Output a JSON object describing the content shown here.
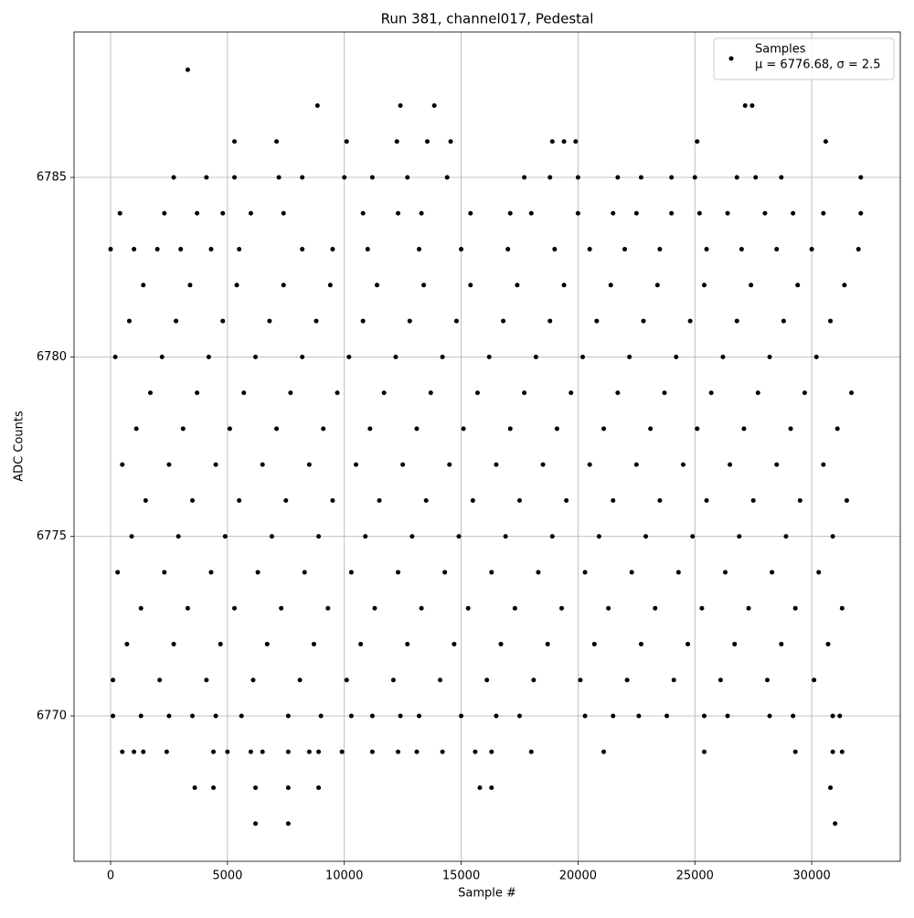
{
  "chart_data": {
    "type": "scatter",
    "title": "Run 381, channel017, Pedestal",
    "x_label": "Sample #",
    "y_label": "ADC Counts",
    "xlim": [
      -1565,
      33790
    ],
    "ylim": [
      6765.95,
      6789.05
    ],
    "xticks": [
      0,
      5000,
      10000,
      15000,
      20000,
      25000,
      30000
    ],
    "yticks": [
      6770,
      6775,
      6780,
      6785
    ],
    "grid": true,
    "legend_position": "upper right",
    "series": [
      {
        "name": "Samples",
        "label": "μ = 6776.68, σ = 2.5",
        "color": "#000000",
        "x": [
          3300,
          8850,
          12400,
          13850,
          27150,
          27450,
          5300,
          7100,
          10100,
          12250,
          13550,
          14550,
          18900,
          19400,
          19900,
          25100,
          30600,
          2700,
          4100,
          5300,
          7200,
          8200,
          10000,
          11200,
          12700,
          14400,
          17700,
          18800,
          20000,
          21700,
          22700,
          24000,
          25000,
          26800,
          27600,
          28700,
          32100,
          400,
          2300,
          3700,
          4800,
          6000,
          7400,
          10800,
          12300,
          13300,
          15400,
          17100,
          18000,
          20000,
          21500,
          22500,
          24000,
          25200,
          26400,
          28000,
          29200,
          30500,
          32100,
          0,
          1000,
          2000,
          3000,
          4300,
          5500,
          8200,
          9500,
          11000,
          13200,
          15000,
          17000,
          19000,
          20500,
          22000,
          23500,
          25500,
          27000,
          28500,
          30000,
          32000,
          1400,
          3400,
          5400,
          7400,
          9400,
          11400,
          13400,
          15400,
          17400,
          19400,
          21400,
          23400,
          25400,
          27400,
          29400,
          31400,
          800,
          2800,
          4800,
          6800,
          8800,
          10800,
          12800,
          14800,
          16800,
          18800,
          20800,
          22800,
          24800,
          26800,
          28800,
          30800,
          200,
          2200,
          4200,
          6200,
          8200,
          10200,
          12200,
          14200,
          16200,
          18200,
          20200,
          22200,
          24200,
          26200,
          28200,
          30200,
          1700,
          3700,
          5700,
          7700,
          9700,
          11700,
          13700,
          15700,
          17700,
          19700,
          21700,
          23700,
          25700,
          27700,
          29700,
          31700,
          1100,
          3100,
          5100,
          7100,
          9100,
          11100,
          13100,
          15100,
          17100,
          19100,
          21100,
          23100,
          25100,
          27100,
          29100,
          31100,
          500,
          2500,
          4500,
          6500,
          8500,
          10500,
          12500,
          14500,
          16500,
          18500,
          20500,
          22500,
          24500,
          26500,
          28500,
          30500,
          1500,
          3500,
          5500,
          7500,
          9500,
          11500,
          13500,
          15500,
          17500,
          19500,
          21500,
          23500,
          25500,
          27500,
          29500,
          31500,
          900,
          2900,
          4900,
          6900,
          8900,
          10900,
          12900,
          14900,
          16900,
          18900,
          20900,
          22900,
          24900,
          26900,
          28900,
          30900,
          300,
          2300,
          4300,
          6300,
          8300,
          10300,
          12300,
          14300,
          16300,
          18300,
          20300,
          22300,
          24300,
          26300,
          28300,
          30300,
          1300,
          3300,
          5300,
          7300,
          9300,
          11300,
          13300,
          15300,
          17300,
          19300,
          21300,
          23300,
          25300,
          27300,
          29300,
          31300,
          700,
          2700,
          4700,
          6700,
          8700,
          10700,
          12700,
          14700,
          16700,
          18700,
          20700,
          22700,
          24700,
          26700,
          28700,
          30700,
          100,
          2100,
          4100,
          6100,
          8100,
          10100,
          12100,
          14100,
          16100,
          18100,
          20100,
          22100,
          24100,
          26100,
          28100,
          30100,
          100,
          1300,
          2500,
          3500,
          4500,
          5600,
          7600,
          9000,
          10300,
          11200,
          12400,
          13200,
          15000,
          16500,
          17500,
          20300,
          21500,
          22600,
          23800,
          25400,
          26400,
          28200,
          29200,
          30900,
          31200,
          500,
          1000,
          1400,
          2400,
          4400,
          5000,
          6000,
          6500,
          7600,
          8500,
          8900,
          9900,
          11200,
          12300,
          13100,
          14200,
          15600,
          16300,
          18000,
          21100,
          25400,
          29300,
          30900,
          31300,
          3600,
          4400,
          6200,
          7600,
          8900,
          15800,
          16300,
          30800,
          6200,
          7600,
          31000
        ],
        "values": [
          6788,
          6787,
          6787,
          6787,
          6787,
          6787,
          6786,
          6786,
          6786,
          6786,
          6786,
          6786,
          6786,
          6786,
          6786,
          6786,
          6786,
          6785,
          6785,
          6785,
          6785,
          6785,
          6785,
          6785,
          6785,
          6785,
          6785,
          6785,
          6785,
          6785,
          6785,
          6785,
          6785,
          6785,
          6785,
          6785,
          6785,
          6784,
          6784,
          6784,
          6784,
          6784,
          6784,
          6784,
          6784,
          6784,
          6784,
          6784,
          6784,
          6784,
          6784,
          6784,
          6784,
          6784,
          6784,
          6784,
          6784,
          6784,
          6784,
          6783,
          6783,
          6783,
          6783,
          6783,
          6783,
          6783,
          6783,
          6783,
          6783,
          6783,
          6783,
          6783,
          6783,
          6783,
          6783,
          6783,
          6783,
          6783,
          6783,
          6783,
          6782,
          6782,
          6782,
          6782,
          6782,
          6782,
          6782,
          6782,
          6782,
          6782,
          6782,
          6782,
          6782,
          6782,
          6782,
          6782,
          6781,
          6781,
          6781,
          6781,
          6781,
          6781,
          6781,
          6781,
          6781,
          6781,
          6781,
          6781,
          6781,
          6781,
          6781,
          6781,
          6780,
          6780,
          6780,
          6780,
          6780,
          6780,
          6780,
          6780,
          6780,
          6780,
          6780,
          6780,
          6780,
          6780,
          6780,
          6780,
          6779,
          6779,
          6779,
          6779,
          6779,
          6779,
          6779,
          6779,
          6779,
          6779,
          6779,
          6779,
          6779,
          6779,
          6779,
          6779,
          6778,
          6778,
          6778,
          6778,
          6778,
          6778,
          6778,
          6778,
          6778,
          6778,
          6778,
          6778,
          6778,
          6778,
          6778,
          6778,
          6777,
          6777,
          6777,
          6777,
          6777,
          6777,
          6777,
          6777,
          6777,
          6777,
          6777,
          6777,
          6777,
          6777,
          6777,
          6777,
          6776,
          6776,
          6776,
          6776,
          6776,
          6776,
          6776,
          6776,
          6776,
          6776,
          6776,
          6776,
          6776,
          6776,
          6776,
          6776,
          6775,
          6775,
          6775,
          6775,
          6775,
          6775,
          6775,
          6775,
          6775,
          6775,
          6775,
          6775,
          6775,
          6775,
          6775,
          6775,
          6774,
          6774,
          6774,
          6774,
          6774,
          6774,
          6774,
          6774,
          6774,
          6774,
          6774,
          6774,
          6774,
          6774,
          6774,
          6774,
          6773,
          6773,
          6773,
          6773,
          6773,
          6773,
          6773,
          6773,
          6773,
          6773,
          6773,
          6773,
          6773,
          6773,
          6773,
          6773,
          6772,
          6772,
          6772,
          6772,
          6772,
          6772,
          6772,
          6772,
          6772,
          6772,
          6772,
          6772,
          6772,
          6772,
          6772,
          6772,
          6771,
          6771,
          6771,
          6771,
          6771,
          6771,
          6771,
          6771,
          6771,
          6771,
          6771,
          6771,
          6771,
          6771,
          6771,
          6771,
          6770,
          6770,
          6770,
          6770,
          6770,
          6770,
          6770,
          6770,
          6770,
          6770,
          6770,
          6770,
          6770,
          6770,
          6770,
          6770,
          6770,
          6770,
          6770,
          6770,
          6770,
          6770,
          6770,
          6770,
          6770,
          6769,
          6769,
          6769,
          6769,
          6769,
          6769,
          6769,
          6769,
          6769,
          6769,
          6769,
          6769,
          6769,
          6769,
          6769,
          6769,
          6769,
          6769,
          6769,
          6769,
          6769,
          6769,
          6769,
          6769,
          6768,
          6768,
          6768,
          6768,
          6768,
          6768,
          6768,
          6768,
          6767,
          6767,
          6767
        ]
      }
    ]
  }
}
